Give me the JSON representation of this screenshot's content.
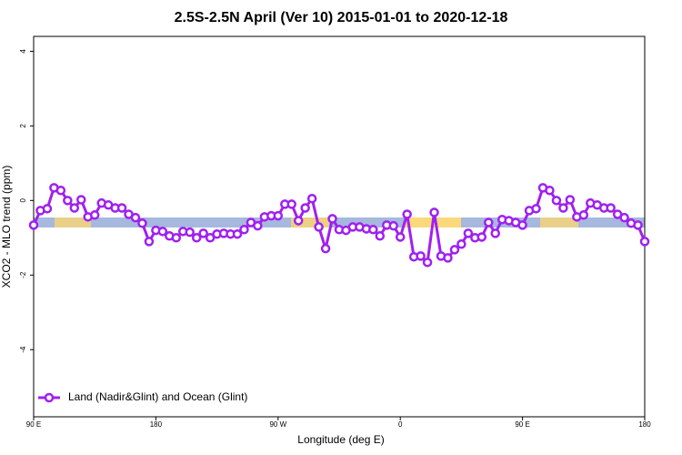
{
  "chart_data": {
    "type": "line",
    "title": "2.5S-2.5N April (Ver 10)   2015-01-01 to 2020-12-18",
    "x_label": "Longitude (deg E)",
    "y_label": "XCO2 - MLO trend (ppm)",
    "x": [
      90,
      95,
      100,
      105,
      110,
      115,
      120,
      125,
      130,
      135,
      140,
      145,
      150,
      155,
      160,
      165,
      170,
      175,
      180,
      185,
      190,
      195,
      200,
      205,
      210,
      215,
      220,
      225,
      230,
      235,
      240,
      245,
      250,
      255,
      260,
      265,
      270,
      275,
      280,
      285,
      290,
      295,
      300,
      305,
      310,
      315,
      320,
      325,
      330,
      335,
      340,
      345,
      350,
      355,
      360,
      365,
      370,
      375,
      380,
      385,
      390,
      395,
      400,
      405,
      410,
      415,
      420,
      425,
      430,
      435,
      440,
      445,
      450,
      455,
      460,
      465,
      470,
      475,
      480,
      485,
      490,
      495,
      500,
      505,
      510,
      515,
      520,
      525,
      530,
      535,
      540
    ],
    "series": [
      {
        "name": "Land (Nadir&Glint) and Ocean (Glint)",
        "color": "#a020f0",
        "values": [
          -0.66,
          -0.27,
          -0.22,
          0.34,
          0.27,
          0,
          -0.2,
          0.02,
          -0.44,
          -0.39,
          -0.07,
          -0.12,
          -0.2,
          -0.2,
          -0.37,
          -0.46,
          -0.61,
          -1.1,
          -0.8,
          -0.83,
          -0.95,
          -1.0,
          -0.83,
          -0.85,
          -1.0,
          -0.88,
          -1.0,
          -0.9,
          -0.88,
          -0.9,
          -0.9,
          -0.78,
          -0.59,
          -0.68,
          -0.44,
          -0.41,
          -0.41,
          -0.1,
          -0.1,
          -0.54,
          -0.2,
          0.05,
          -0.71,
          -1.29,
          -0.49,
          -0.78,
          -0.8,
          -0.71,
          -0.71,
          -0.76,
          -0.78,
          -0.95,
          -0.66,
          -0.68,
          -0.98,
          -0.37,
          -1.51,
          -1.49,
          -1.66,
          -0.32,
          -1.49,
          -1.54,
          -1.32,
          -1.17,
          -0.88,
          -1.0,
          -0.98,
          -0.59,
          -0.88,
          -0.51,
          -0.54,
          -0.59,
          -0.66,
          -0.27,
          -0.22,
          0.34,
          0.27,
          0,
          -0.2,
          0.02,
          -0.44,
          -0.39,
          -0.07,
          -0.12,
          -0.2,
          -0.2,
          -0.37,
          -0.46,
          -0.61,
          -0.66,
          -1.1
        ]
      }
    ],
    "xlim": [
      90,
      540
    ],
    "xticks": [
      {
        "value": 90,
        "label": "90 E"
      },
      180,
      {
        "value": 270,
        "label": "90 W"
      },
      {
        "value": 360,
        "label": "0"
      },
      {
        "value": 450,
        "label": "90 E"
      },
      {
        "value": 540,
        "label": "180"
      }
    ],
    "ylim": [
      -5.8,
      4.4
    ],
    "yticks": [
      -4,
      -2,
      0,
      2,
      4
    ],
    "legend": "lower left"
  }
}
